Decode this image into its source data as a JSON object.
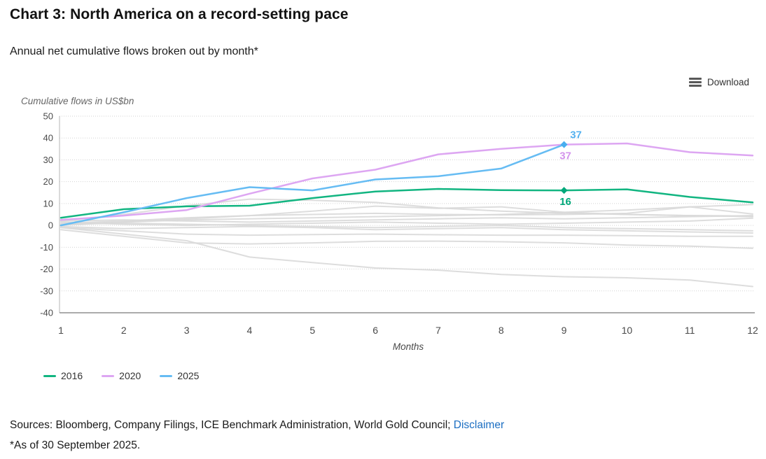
{
  "header": {
    "title": "Chart 3: North America on a record-setting pace",
    "subtitle": "Annual net cumulative flows broken out by month*"
  },
  "toolbar": {
    "download_label": "Download",
    "menu_icon": "hamburger-icon"
  },
  "chart_data": {
    "type": "line",
    "title": "Chart 3: North America on a record-setting pace",
    "subtitle": "Annual net cumulative flows broken out by month*",
    "xlabel": "Months",
    "ylabel": "Cumulative flows in US$bn",
    "x_ticks": [
      1,
      2,
      3,
      4,
      5,
      6,
      7,
      8,
      9,
      10,
      11,
      12
    ],
    "y_ticks": [
      50,
      40,
      30,
      20,
      10,
      0,
      -10,
      -20,
      -30,
      -40
    ],
    "ylim": [
      -40,
      50
    ],
    "xlim": [
      1,
      12
    ],
    "grid": "horizontal-dotted",
    "legend_position": "bottom-left",
    "series": [
      {
        "name": "2016",
        "color": "#12b581",
        "values": [
          3.5,
          7.4,
          8.7,
          9,
          12.5,
          15.5,
          16.7,
          16.1,
          16,
          16.5,
          13,
          10.5
        ]
      },
      {
        "name": "2020",
        "color": "#dda6f2",
        "values": [
          2.5,
          4.5,
          7,
          14.5,
          21.5,
          25.5,
          32.5,
          35,
          37,
          37.5,
          33.5,
          32
        ]
      },
      {
        "name": "2025",
        "color": "#66bcf3",
        "values": [
          0,
          6,
          12.5,
          17.5,
          16,
          21,
          22.5,
          26,
          37
        ]
      }
    ],
    "background_series": [
      {
        "values": [
          0.5,
          1.5,
          2.5,
          3,
          3.5,
          4,
          4.5,
          5,
          6,
          7,
          8.5,
          9.5
        ]
      },
      {
        "values": [
          1,
          2,
          3.5,
          4.5,
          5,
          5.5,
          5,
          4.8,
          5,
          5.5,
          8.5,
          5.2
        ]
      },
      {
        "values": [
          2,
          5,
          9,
          12,
          11.5,
          10.5,
          8,
          6.5,
          5.5,
          5,
          4.5,
          4.3
        ]
      },
      {
        "values": [
          0,
          1.5,
          3,
          4.5,
          6.5,
          8.8,
          7.8,
          8.5,
          6,
          5,
          4.5,
          4
        ]
      },
      {
        "values": [
          0.5,
          1,
          0.5,
          0,
          -0.5,
          -1,
          -0.5,
          0,
          -1,
          -1.5,
          -2,
          -2.5
        ]
      },
      {
        "values": [
          -0.5,
          -1.5,
          -1,
          -0.5,
          -1,
          -2,
          -1.5,
          -1,
          -2,
          -2.5,
          -3,
          -3.5
        ]
      },
      {
        "values": [
          -1,
          -2.5,
          -4,
          -4.5,
          -4.2,
          -4,
          -4.3,
          -4.5,
          -4.5,
          -4.7,
          -5,
          -5
        ]
      },
      {
        "values": [
          -2,
          -5,
          -8,
          -8.5,
          -8,
          -7.3,
          -7.2,
          -7.5,
          -8,
          -9,
          -9.5,
          -10.5
        ]
      },
      {
        "values": [
          -1,
          -4,
          -7,
          -14.5,
          -17,
          -19.5,
          -20.5,
          -22.5,
          -23.5,
          -24,
          -25,
          -28
        ]
      },
      {
        "values": [
          2,
          2.5,
          2,
          1.5,
          2,
          2.5,
          3,
          3.5,
          3,
          3.5,
          4,
          4.5
        ]
      },
      {
        "values": [
          1.5,
          0.5,
          0,
          0.5,
          1,
          1.5,
          1,
          0.5,
          1,
          1.5,
          2,
          3.3
        ]
      }
    ],
    "background_color": "#d9d9d9",
    "markers": [
      {
        "series": "2025",
        "month": 9,
        "value": 37,
        "shape": "diamond",
        "color": "#49aeef"
      },
      {
        "series": "2016",
        "month": 9,
        "value": 16,
        "shape": "diamond",
        "color": "#00a87a"
      }
    ],
    "annotations": [
      {
        "series": "2025",
        "label": "37",
        "month": 9,
        "value": 37,
        "color": "#55b1ef",
        "placement": "above-right"
      },
      {
        "series": "2020",
        "label": "37",
        "month": 9,
        "value": 37,
        "color": "#d394ec",
        "placement": "below"
      },
      {
        "series": "2016",
        "label": "16",
        "month": 9,
        "value": 16,
        "color": "#00a87a",
        "placement": "below"
      }
    ]
  },
  "legend": {
    "items": [
      {
        "label": "2016"
      },
      {
        "label": "2020"
      },
      {
        "label": "2025"
      }
    ]
  },
  "footer": {
    "sources_prefix": "Sources: Bloomberg, Company Filings, ICE Benchmark Administration, World Gold Council; ",
    "disclaimer_label": "Disclaimer",
    "asof": "*As of 30 September 2025."
  },
  "colors": {
    "grid": "#d2d2d2",
    "axis": "#b5b5b5",
    "axis_bottom": "#8f8f8f",
    "tick_text": "#4a4a4a",
    "link": "#1b6ec2"
  }
}
